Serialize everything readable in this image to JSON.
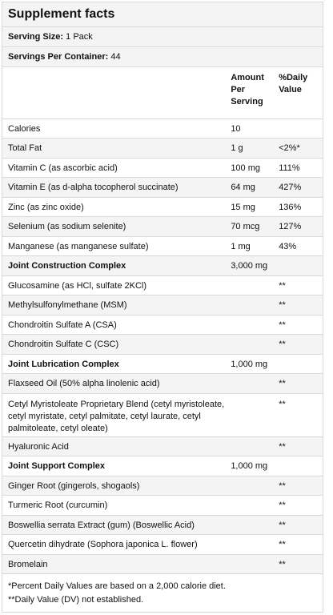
{
  "title": "Supplement facts",
  "serving_size_label": "Serving Size:",
  "serving_size_value": "1 Pack",
  "servings_label": "Servings Per Container:",
  "servings_value": "44",
  "header": {
    "amount": "Amount Per Serving",
    "dv": "%Daily Value"
  },
  "rows": [
    {
      "name": "Calories",
      "amount": "10",
      "dv": ""
    },
    {
      "name": "Total Fat",
      "amount": "1 g",
      "dv": "<2%*"
    },
    {
      "name": "Vitamin C (as ascorbic acid)",
      "amount": "100 mg",
      "dv": "111%"
    },
    {
      "name": "Vitamin E (as d-alpha tocopherol succinate)",
      "amount": "64 mg",
      "dv": "427%"
    },
    {
      "name": "Zinc (as zinc oxide)",
      "amount": "15 mg",
      "dv": "136%"
    },
    {
      "name": "Selenium (as sodium selenite)",
      "amount": "70 mcg",
      "dv": "127%"
    },
    {
      "name": "Manganese (as manganese sulfate)",
      "amount": "1 mg",
      "dv": "43%"
    },
    {
      "name": "Joint Construction Complex",
      "amount": "3,000 mg",
      "dv": "",
      "section": true
    },
    {
      "name": "Glucosamine (as HCl, sulfate 2KCl)",
      "amount": "",
      "dv": "**"
    },
    {
      "name": "Methylsulfonylmethane (MSM)",
      "amount": "",
      "dv": "**"
    },
    {
      "name": "Chondroitin Sulfate A (CSA)",
      "amount": "",
      "dv": "**"
    },
    {
      "name": "Chondroitin Sulfate C (CSC)",
      "amount": "",
      "dv": "**"
    },
    {
      "name": "Joint Lubrication Complex",
      "amount": "1,000 mg",
      "dv": "",
      "section": true
    },
    {
      "name": "Flaxseed Oil (50% alpha linolenic acid)",
      "amount": "",
      "dv": "**"
    },
    {
      "name": "Cetyl Myristoleate Proprietary Blend (cetyl myristoleate, cetyl myristate, cetyl palmitate, cetyl laurate, cetyl palmitoleate, cetyl oleate)",
      "amount": "",
      "dv": "**",
      "tall": true
    },
    {
      "name": "Hyaluronic Acid",
      "amount": "",
      "dv": "**"
    },
    {
      "name": "Joint Support Complex",
      "amount": "1,000 mg",
      "dv": "",
      "section": true
    },
    {
      "name": "Ginger Root (gingerols, shogaols)",
      "amount": "",
      "dv": "**"
    },
    {
      "name": "Turmeric Root (curcumin)",
      "amount": "",
      "dv": "**"
    },
    {
      "name": "Boswellia serrata Extract (gum) (Boswellic Acid)",
      "amount": "",
      "dv": "**"
    },
    {
      "name": "Quercetin dihydrate (Sophora japonica L. flower)",
      "amount": "",
      "dv": "**"
    },
    {
      "name": "Bromelain",
      "amount": "",
      "dv": "**"
    }
  ],
  "footnotes": [
    "*Percent Daily Values are based on a 2,000 calorie diet.",
    "**Daily Value (DV) not established."
  ]
}
